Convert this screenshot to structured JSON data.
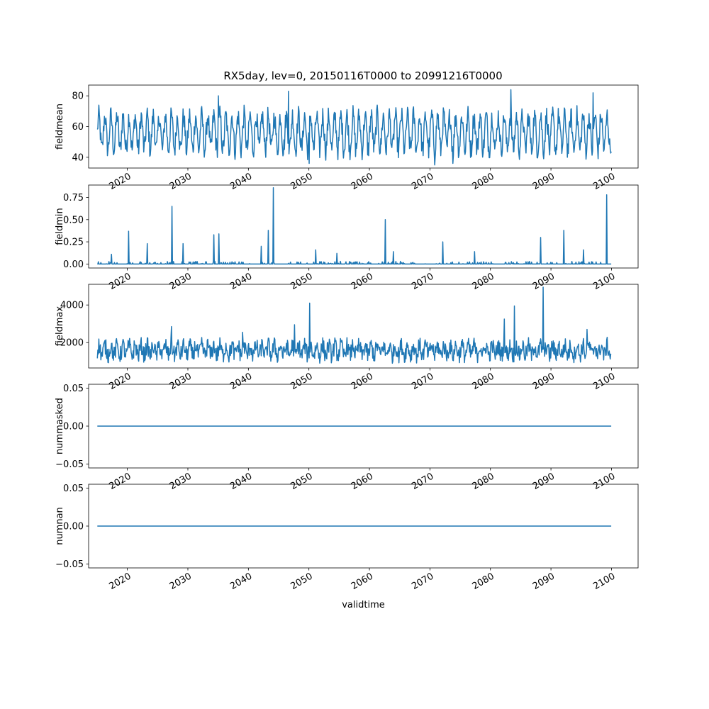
{
  "title": "RX5day, lev=0, 20150116T0000 to 20991216T0000",
  "series_color": "#1f77b4",
  "chart_data": [
    {
      "type": "line",
      "ylabel": "fieldmean",
      "xlim": [
        2013.6,
        2104.4
      ],
      "ylim": [
        33,
        87
      ],
      "yticks": [
        40,
        60,
        80
      ],
      "ytick_labels": [
        "40",
        "60",
        "80"
      ],
      "x_start": 2015.04,
      "x_end": 2099.96,
      "spikes": [
        [
          2035.0,
          80
        ],
        [
          2046.6,
          83
        ],
        [
          2083.4,
          84
        ],
        [
          2097.0,
          82
        ],
        [
          2050.0,
          36
        ],
        [
          2070.8,
          35
        ],
        [
          2073.8,
          36
        ]
      ]
    },
    {
      "type": "line",
      "ylabel": "fieldmin",
      "xlim": [
        2013.6,
        2104.4
      ],
      "ylim": [
        -0.045,
        0.89
      ],
      "yticks": [
        0.0,
        0.25,
        0.5,
        0.75
      ],
      "ytick_labels": [
        "0.00",
        "0.25",
        "0.50",
        "0.75"
      ],
      "x_start": 2015.04,
      "x_end": 2099.96,
      "spikes": [
        [
          2017.4,
          0.11
        ],
        [
          2020.2,
          0.37
        ],
        [
          2023.3,
          0.23
        ],
        [
          2027.4,
          0.65
        ],
        [
          2029.2,
          0.23
        ],
        [
          2034.3,
          0.33
        ],
        [
          2035.1,
          0.34
        ],
        [
          2042.1,
          0.2
        ],
        [
          2043.3,
          0.38
        ],
        [
          2044.1,
          0.86
        ],
        [
          2051.1,
          0.16
        ],
        [
          2054.6,
          0.12
        ],
        [
          2062.6,
          0.5
        ],
        [
          2064.0,
          0.14
        ],
        [
          2072.1,
          0.25
        ],
        [
          2077.4,
          0.14
        ],
        [
          2088.3,
          0.3
        ],
        [
          2092.1,
          0.38
        ],
        [
          2095.4,
          0.16
        ],
        [
          2099.2,
          0.78
        ]
      ]
    },
    {
      "type": "line",
      "ylabel": "fieldmax",
      "xlim": [
        2013.6,
        2104.4
      ],
      "ylim": [
        650,
        5100
      ],
      "yticks": [
        2000,
        4000
      ],
      "ytick_labels": [
        "2000",
        "4000"
      ],
      "x_start": 2015.04,
      "x_end": 2099.96,
      "spikes": [
        [
          2027.3,
          2850
        ],
        [
          2039.0,
          2550
        ],
        [
          2047.6,
          2950
        ],
        [
          2050.1,
          4100
        ],
        [
          2082.3,
          3250
        ],
        [
          2084.0,
          3950
        ],
        [
          2088.7,
          4950
        ],
        [
          2096.0,
          2700
        ]
      ]
    },
    {
      "type": "line",
      "ylabel": "nummasked",
      "xlim": [
        2013.6,
        2104.4
      ],
      "ylim": [
        -0.055,
        0.055
      ],
      "yticks": [
        -0.05,
        0.0,
        0.05
      ],
      "ytick_labels": [
        "−0.05",
        "0.00",
        "0.05"
      ],
      "x_start": 2015.04,
      "x_end": 2099.96,
      "constant": 0.0
    },
    {
      "type": "line",
      "ylabel": "numnan",
      "xlabel": "validtime",
      "xlim": [
        2013.6,
        2104.4
      ],
      "ylim": [
        -0.055,
        0.055
      ],
      "yticks": [
        -0.05,
        0.0,
        0.05
      ],
      "ytick_labels": [
        "−0.05",
        "0.00",
        "0.05"
      ],
      "x_start": 2015.04,
      "x_end": 2099.96,
      "constant": 0.0
    }
  ],
  "xticks": [
    2020,
    2030,
    2040,
    2050,
    2060,
    2070,
    2080,
    2090,
    2100
  ],
  "xtick_labels": [
    "2020",
    "2030",
    "2040",
    "2050",
    "2060",
    "2070",
    "2080",
    "2090",
    "2100"
  ]
}
